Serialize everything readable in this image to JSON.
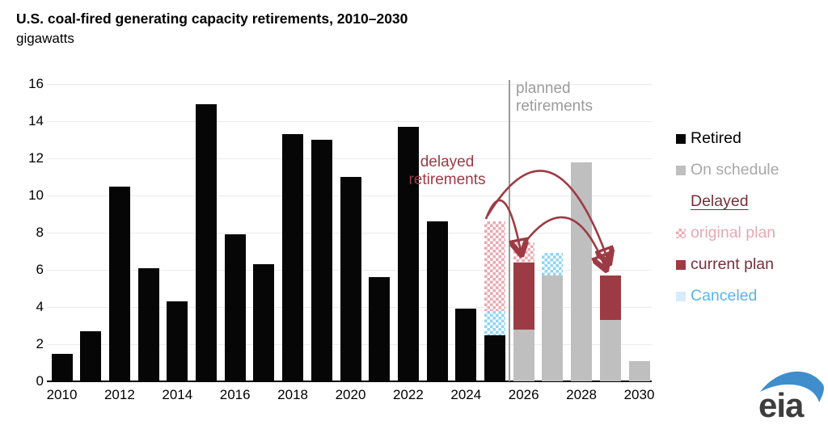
{
  "title": "U.S. coal-fired generating capacity retirements, 2010–2030",
  "subtitle": "gigawatts",
  "annotations": {
    "planned": {
      "line1": "planned",
      "line2": "retirements"
    },
    "delayed": {
      "line1": "delayed",
      "line2": "retirements"
    }
  },
  "colors": {
    "retired": "#060606",
    "on_schedule_bar": "#bfbfbf",
    "on_schedule_text": "#a8a8a8",
    "current_plan_bar": "#9d3b44",
    "maroon_text": "#76303c",
    "original_plan_hatch": "#eaa9b1",
    "original_plan_text": "#e5a9b2",
    "canceled_hatch": "#8ed4f4",
    "canceled_text": "#5ab4ea",
    "canceled_swatch": "#d7ecfb",
    "arrow": "#9d3b44",
    "divider": "#9a9a9a",
    "gridline": "#ebebeb",
    "logo_blue": "#3f8ecb",
    "logo_text": "#3d3d3d"
  },
  "legend": {
    "items": [
      {
        "label": "Retired",
        "swatch": "retired",
        "text_color": "#000000",
        "underline": false
      },
      {
        "label": "On schedule",
        "swatch": "onsched",
        "text_color": "#a8a8a8",
        "underline": false
      },
      {
        "label": "Delayed",
        "swatch": "none",
        "text_color": "#76303c",
        "underline": true
      },
      {
        "label": "original plan",
        "swatch": "original",
        "text_color": "#e5a9b2",
        "underline": false
      },
      {
        "label": "current plan",
        "swatch": "current",
        "text_color": "#76303c",
        "underline": false
      },
      {
        "label": "Canceled",
        "swatch": "canceled",
        "text_color": "#5ab4ea",
        "underline": false
      }
    ]
  },
  "logo": {
    "text": "eia"
  },
  "chart_data": {
    "type": "bar",
    "stacked": true,
    "title": "U.S. coal-fired generating capacity retirements, 2010–2030",
    "ylabel": "gigawatts",
    "ylim": [
      0,
      16
    ],
    "yticks": [
      0,
      2,
      4,
      6,
      8,
      10,
      12,
      14,
      16
    ],
    "xtick_labels": [
      "2010",
      "2012",
      "2014",
      "2016",
      "2018",
      "2020",
      "2022",
      "2024",
      "2026",
      "2028",
      "2030"
    ],
    "grid": "horizontal",
    "legend_position": "right",
    "divider_between": [
      2025,
      2026
    ],
    "bars": [
      {
        "year": 2010,
        "segments": [
          [
            "retired",
            1.5
          ]
        ]
      },
      {
        "year": 2011,
        "segments": [
          [
            "retired",
            2.7
          ]
        ]
      },
      {
        "year": 2012,
        "segments": [
          [
            "retired",
            10.5
          ]
        ]
      },
      {
        "year": 2013,
        "segments": [
          [
            "retired",
            6.1
          ]
        ]
      },
      {
        "year": 2014,
        "segments": [
          [
            "retired",
            4.3
          ]
        ]
      },
      {
        "year": 2015,
        "segments": [
          [
            "retired",
            14.9
          ]
        ]
      },
      {
        "year": 2016,
        "segments": [
          [
            "retired",
            7.9
          ]
        ]
      },
      {
        "year": 2017,
        "segments": [
          [
            "retired",
            6.3
          ]
        ]
      },
      {
        "year": 2018,
        "segments": [
          [
            "retired",
            13.3
          ]
        ]
      },
      {
        "year": 2019,
        "segments": [
          [
            "retired",
            13.0
          ]
        ]
      },
      {
        "year": 2020,
        "segments": [
          [
            "retired",
            11.0
          ]
        ]
      },
      {
        "year": 2021,
        "segments": [
          [
            "retired",
            5.6
          ]
        ]
      },
      {
        "year": 2022,
        "segments": [
          [
            "retired",
            13.7
          ]
        ]
      },
      {
        "year": 2023,
        "segments": [
          [
            "retired",
            8.6
          ]
        ]
      },
      {
        "year": 2024,
        "segments": [
          [
            "retired",
            3.9
          ]
        ]
      },
      {
        "year": 2025,
        "segments": [
          [
            "retired",
            2.5
          ],
          [
            "canceled",
            1.3
          ],
          [
            "original_plan",
            4.8
          ]
        ]
      },
      {
        "year": 2026,
        "segments": [
          [
            "on_schedule",
            2.8
          ],
          [
            "current_plan",
            3.6
          ],
          [
            "original_plan",
            1.1
          ]
        ]
      },
      {
        "year": 2027,
        "segments": [
          [
            "on_schedule",
            5.7
          ],
          [
            "canceled",
            1.2
          ]
        ]
      },
      {
        "year": 2028,
        "segments": [
          [
            "on_schedule",
            11.8
          ]
        ]
      },
      {
        "year": 2029,
        "segments": [
          [
            "on_schedule",
            3.3
          ],
          [
            "current_plan",
            2.4
          ]
        ]
      },
      {
        "year": 2030,
        "segments": [
          [
            "on_schedule",
            1.1
          ]
        ]
      }
    ],
    "series": [
      {
        "name": "Retired",
        "style": "solid-black"
      },
      {
        "name": "On schedule",
        "style": "solid-gray"
      },
      {
        "name": "Delayed original plan",
        "style": "pink-hatch"
      },
      {
        "name": "Delayed current plan",
        "style": "solid-maroon"
      },
      {
        "name": "Canceled",
        "style": "blue-hatch"
      }
    ],
    "annotations": [
      {
        "text": "planned retirements",
        "type": "divider-label"
      },
      {
        "text": "delayed retirements",
        "type": "arrows",
        "arrows": [
          "2025→2026",
          "2025→2029",
          "2026→2029"
        ]
      }
    ]
  }
}
